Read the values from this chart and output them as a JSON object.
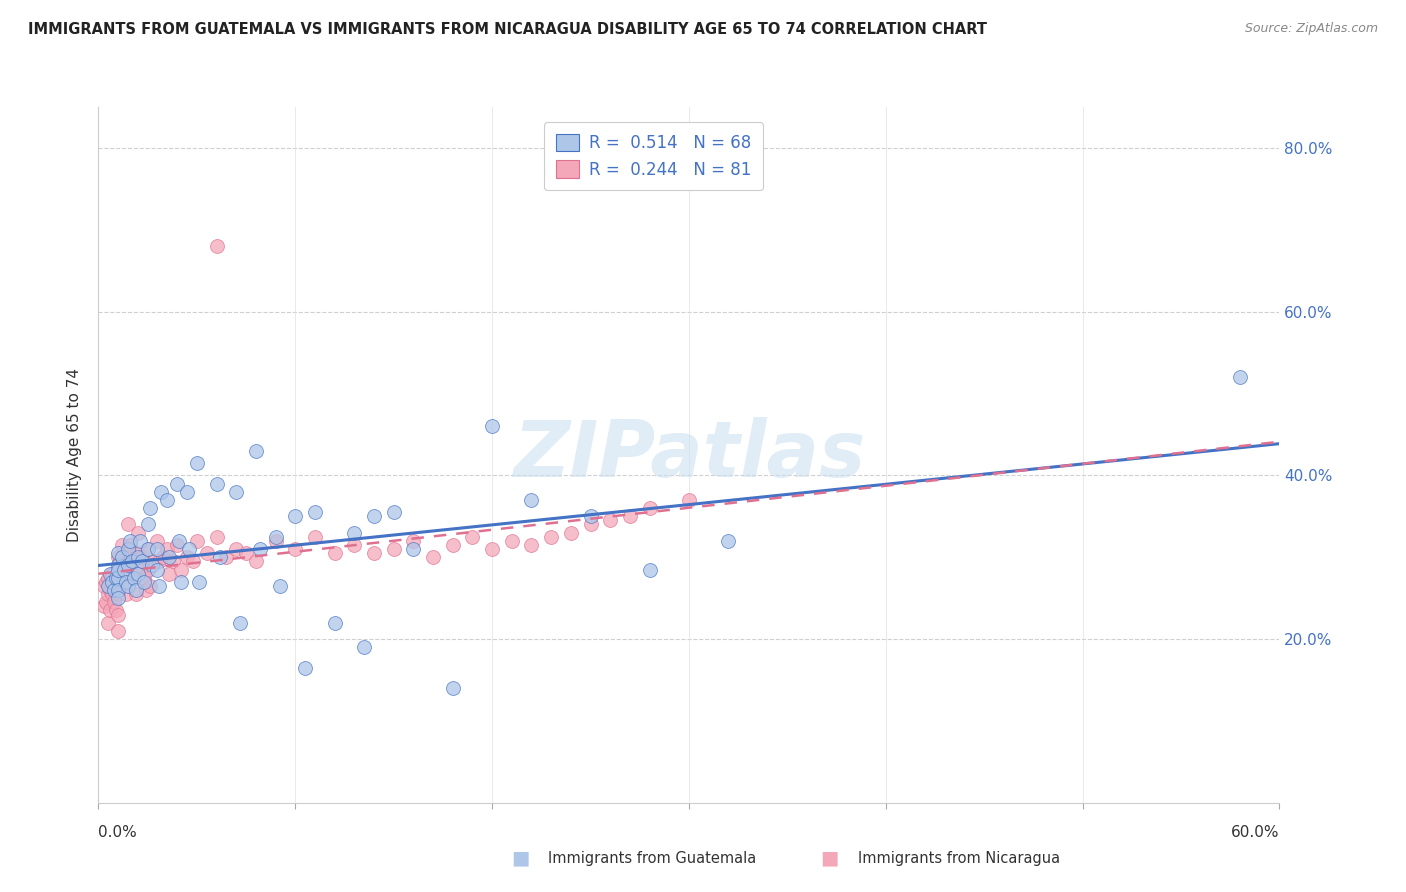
{
  "title": "IMMIGRANTS FROM GUATEMALA VS IMMIGRANTS FROM NICARAGUA DISABILITY AGE 65 TO 74 CORRELATION CHART",
  "source": "Source: ZipAtlas.com",
  "ylabel": "Disability Age 65 to 74",
  "xmin": 0.0,
  "xmax": 0.6,
  "ymin": 0.0,
  "ymax": 0.85,
  "yticks": [
    0.2,
    0.4,
    0.6,
    0.8
  ],
  "ytick_labels": [
    "20.0%",
    "40.0%",
    "60.0%",
    "80.0%"
  ],
  "watermark": "ZIPatlas",
  "color_blue": "#aec6e8",
  "color_pink": "#f4a7b9",
  "line_blue": "#4472c4",
  "line_pink": "#e07090",
  "guatemala_x": [
    0.005,
    0.006,
    0.007,
    0.008,
    0.009,
    0.01,
    0.01,
    0.01,
    0.01,
    0.01,
    0.01,
    0.012,
    0.013,
    0.014,
    0.015,
    0.015,
    0.015,
    0.016,
    0.017,
    0.018,
    0.019,
    0.02,
    0.02,
    0.021,
    0.022,
    0.023,
    0.025,
    0.025,
    0.026,
    0.027,
    0.03,
    0.03,
    0.031,
    0.032,
    0.035,
    0.036,
    0.04,
    0.041,
    0.042,
    0.045,
    0.046,
    0.05,
    0.051,
    0.06,
    0.062,
    0.07,
    0.072,
    0.08,
    0.082,
    0.09,
    0.092,
    0.1,
    0.105,
    0.11,
    0.12,
    0.13,
    0.135,
    0.14,
    0.15,
    0.16,
    0.18,
    0.2,
    0.22,
    0.25,
    0.28,
    0.32,
    0.58
  ],
  "guatemala_y": [
    0.265,
    0.28,
    0.27,
    0.26,
    0.275,
    0.29,
    0.305,
    0.275,
    0.26,
    0.285,
    0.25,
    0.3,
    0.285,
    0.27,
    0.31,
    0.29,
    0.265,
    0.32,
    0.295,
    0.275,
    0.26,
    0.3,
    0.28,
    0.32,
    0.295,
    0.27,
    0.34,
    0.31,
    0.36,
    0.29,
    0.31,
    0.285,
    0.265,
    0.38,
    0.37,
    0.3,
    0.39,
    0.32,
    0.27,
    0.38,
    0.31,
    0.415,
    0.27,
    0.39,
    0.3,
    0.38,
    0.22,
    0.43,
    0.31,
    0.325,
    0.265,
    0.35,
    0.165,
    0.355,
    0.22,
    0.33,
    0.19,
    0.35,
    0.355,
    0.31,
    0.14,
    0.46,
    0.37,
    0.35,
    0.285,
    0.32,
    0.52
  ],
  "nicaragua_x": [
    0.003,
    0.003,
    0.004,
    0.004,
    0.005,
    0.005,
    0.005,
    0.006,
    0.006,
    0.007,
    0.007,
    0.008,
    0.008,
    0.009,
    0.009,
    0.01,
    0.01,
    0.01,
    0.01,
    0.01,
    0.011,
    0.012,
    0.012,
    0.013,
    0.014,
    0.015,
    0.015,
    0.016,
    0.017,
    0.018,
    0.019,
    0.02,
    0.02,
    0.021,
    0.022,
    0.023,
    0.024,
    0.025,
    0.025,
    0.026,
    0.028,
    0.03,
    0.031,
    0.033,
    0.035,
    0.036,
    0.038,
    0.04,
    0.042,
    0.045,
    0.048,
    0.05,
    0.055,
    0.06,
    0.065,
    0.07,
    0.075,
    0.08,
    0.09,
    0.1,
    0.11,
    0.12,
    0.13,
    0.14,
    0.15,
    0.16,
    0.17,
    0.18,
    0.19,
    0.2,
    0.21,
    0.22,
    0.23,
    0.24,
    0.25,
    0.26,
    0.27,
    0.28,
    0.3,
    0.06
  ],
  "nicaragua_y": [
    0.265,
    0.24,
    0.27,
    0.245,
    0.275,
    0.255,
    0.22,
    0.26,
    0.235,
    0.28,
    0.255,
    0.27,
    0.245,
    0.26,
    0.235,
    0.3,
    0.275,
    0.255,
    0.23,
    0.21,
    0.295,
    0.315,
    0.285,
    0.27,
    0.255,
    0.34,
    0.305,
    0.315,
    0.295,
    0.275,
    0.255,
    0.33,
    0.305,
    0.285,
    0.3,
    0.275,
    0.26,
    0.31,
    0.285,
    0.265,
    0.295,
    0.32,
    0.295,
    0.3,
    0.31,
    0.28,
    0.295,
    0.315,
    0.285,
    0.3,
    0.295,
    0.32,
    0.305,
    0.325,
    0.3,
    0.31,
    0.305,
    0.295,
    0.32,
    0.31,
    0.325,
    0.305,
    0.315,
    0.305,
    0.31,
    0.32,
    0.3,
    0.315,
    0.325,
    0.31,
    0.32,
    0.315,
    0.325,
    0.33,
    0.34,
    0.345,
    0.35,
    0.36,
    0.37,
    0.68
  ]
}
